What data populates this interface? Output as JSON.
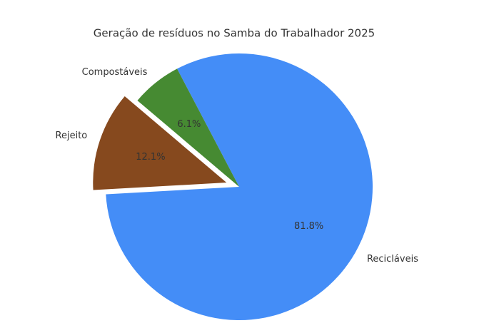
{
  "chart_data": {
    "type": "pie",
    "title": "Geração de resíduos no Samba do Trabalhador 2025",
    "categories": [
      "Recicláveis",
      "Rejeito",
      "Compostáveis"
    ],
    "values": [
      81.8,
      12.1,
      6.1
    ],
    "value_labels": [
      "81.8%",
      "12.1%",
      "6.1%"
    ],
    "colors": [
      "#448df7",
      "#86491e",
      "#468a32"
    ],
    "explode": [
      0,
      0.1,
      0
    ]
  }
}
